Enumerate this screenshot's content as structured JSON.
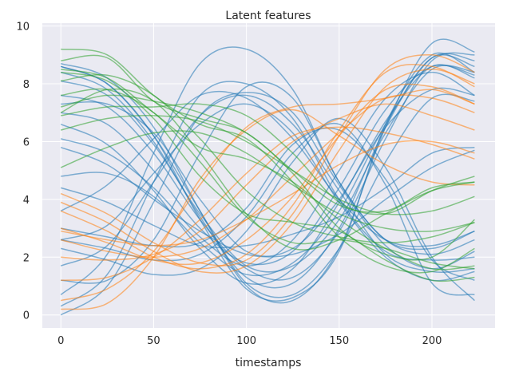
{
  "chart_data": {
    "type": "line",
    "title": "Latent features",
    "xlabel": "timestamps",
    "ylabel": "",
    "xlim": [
      -10,
      234
    ],
    "ylim": [
      -0.45,
      10.1
    ],
    "xticks": [
      0,
      50,
      100,
      150,
      200
    ],
    "yticks": [
      0,
      2,
      4,
      6,
      8,
      10
    ],
    "grid": true,
    "style": "seaborn-darkgrid",
    "colors": {
      "background": "#eaeaf2",
      "grid": "#ffffff",
      "blue": "#1f77b4",
      "orange": "#ff7f0e",
      "green": "#2ca02c"
    },
    "line_alpha": 0.55,
    "x": [
      0,
      25,
      50,
      75,
      100,
      125,
      150,
      175,
      200,
      223
    ],
    "series": [
      {
        "group": "blue",
        "values": [
          0.0,
          1.0,
          3.9,
          6.9,
          7.7,
          7.0,
          4.5,
          2.4,
          1.6,
          2.2
        ]
      },
      {
        "group": "blue",
        "values": [
          0.3,
          1.4,
          4.6,
          7.6,
          8.0,
          6.8,
          4.0,
          2.2,
          1.9,
          2.0
        ]
      },
      {
        "group": "blue",
        "values": [
          0.7,
          2.1,
          5.6,
          8.7,
          9.2,
          7.8,
          4.6,
          2.6,
          2.1,
          2.6
        ]
      },
      {
        "group": "blue",
        "values": [
          1.2,
          1.2,
          2.6,
          5.6,
          7.9,
          7.5,
          4.6,
          2.6,
          2.3,
          2.9
        ]
      },
      {
        "group": "blue",
        "values": [
          1.7,
          2.4,
          4.6,
          6.9,
          7.6,
          6.6,
          4.3,
          2.1,
          1.5,
          1.6
        ]
      },
      {
        "group": "blue",
        "values": [
          2.6,
          3.1,
          4.9,
          6.6,
          7.3,
          6.3,
          3.9,
          2.0,
          1.2,
          1.5
        ]
      },
      {
        "group": "blue",
        "values": [
          3.6,
          4.5,
          6.1,
          7.6,
          7.5,
          6.1,
          4.0,
          2.6,
          2.4,
          2.9
        ]
      },
      {
        "group": "blue",
        "values": [
          4.8,
          4.9,
          4.1,
          2.5,
          1.4,
          1.8,
          3.6,
          6.6,
          8.9,
          8.6
        ]
      },
      {
        "group": "blue",
        "values": [
          6.1,
          5.6,
          4.4,
          2.7,
          1.7,
          2.6,
          5.0,
          7.5,
          8.4,
          7.6
        ]
      },
      {
        "group": "blue",
        "values": [
          6.6,
          5.9,
          4.3,
          2.3,
          1.1,
          1.6,
          3.9,
          6.7,
          8.6,
          8.2
        ]
      },
      {
        "group": "blue",
        "values": [
          7.0,
          6.6,
          5.0,
          3.0,
          1.8,
          2.2,
          4.4,
          7.1,
          8.6,
          8.3
        ]
      },
      {
        "group": "blue",
        "values": [
          7.3,
          7.3,
          6.3,
          4.0,
          2.2,
          2.3,
          4.0,
          6.5,
          7.8,
          7.6
        ]
      },
      {
        "group": "blue",
        "values": [
          7.6,
          7.2,
          5.6,
          3.3,
          1.6,
          1.3,
          2.9,
          6.1,
          8.8,
          9.0
        ]
      },
      {
        "group": "blue",
        "values": [
          8.1,
          7.6,
          5.9,
          3.5,
          1.7,
          1.7,
          3.3,
          6.3,
          8.5,
          8.4
        ]
      },
      {
        "group": "blue",
        "values": [
          8.4,
          7.8,
          6.0,
          3.4,
          1.3,
          1.1,
          3.0,
          6.5,
          8.9,
          8.8
        ]
      },
      {
        "group": "blue",
        "values": [
          8.6,
          8.0,
          6.2,
          3.6,
          1.1,
          0.7,
          2.3,
          5.3,
          7.5,
          7.4
        ]
      },
      {
        "group": "blue",
        "values": [
          8.7,
          8.2,
          6.5,
          3.6,
          1.0,
          0.5,
          2.3,
          6.5,
          9.4,
          9.1
        ]
      },
      {
        "group": "blue",
        "values": [
          8.6,
          8.0,
          6.2,
          3.3,
          0.9,
          0.6,
          2.2,
          6.6,
          9.0,
          8.4
        ]
      },
      {
        "group": "blue",
        "values": [
          2.3,
          1.9,
          1.4,
          1.6,
          2.9,
          5.3,
          6.8,
          5.1,
          2.0,
          0.5
        ]
      },
      {
        "group": "blue",
        "values": [
          2.6,
          2.3,
          1.9,
          2.1,
          3.4,
          5.6,
          6.6,
          4.5,
          1.1,
          0.7
        ]
      },
      {
        "group": "blue",
        "values": [
          3.0,
          2.7,
          2.4,
          2.5,
          3.7,
          5.9,
          6.4,
          4.7,
          1.9,
          1.2
        ]
      },
      {
        "group": "blue",
        "values": [
          4.4,
          3.9,
          3.1,
          2.4,
          2.4,
          2.8,
          3.4,
          4.4,
          5.6,
          5.8
        ]
      },
      {
        "group": "blue",
        "values": [
          5.8,
          5.2,
          4.0,
          2.9,
          2.1,
          2.1,
          2.8,
          4.0,
          5.1,
          5.7
        ]
      },
      {
        "group": "orange",
        "values": [
          4.2,
          3.5,
          2.5,
          1.8,
          1.9,
          3.5,
          6.2,
          8.5,
          9.0,
          8.4
        ]
      },
      {
        "group": "orange",
        "values": [
          3.9,
          3.2,
          2.2,
          1.5,
          1.7,
          3.2,
          5.7,
          7.9,
          8.5,
          8.0
        ]
      },
      {
        "group": "orange",
        "values": [
          3.6,
          2.9,
          2.0,
          1.6,
          2.1,
          3.8,
          6.4,
          8.4,
          8.6,
          7.9
        ]
      },
      {
        "group": "orange",
        "values": [
          3.0,
          2.5,
          1.9,
          1.8,
          2.6,
          4.1,
          6.2,
          7.8,
          7.9,
          7.3
        ]
      },
      {
        "group": "orange",
        "values": [
          2.6,
          2.2,
          2.0,
          2.3,
          3.3,
          4.8,
          6.3,
          7.5,
          7.5,
          7.0
        ]
      },
      {
        "group": "orange",
        "values": [
          2.0,
          1.9,
          2.1,
          2.9,
          4.5,
          6.0,
          6.8,
          7.3,
          6.9,
          6.4
        ]
      },
      {
        "group": "orange",
        "values": [
          1.2,
          1.3,
          2.0,
          3.3,
          4.9,
          6.2,
          6.5,
          6.3,
          5.9,
          5.4
        ]
      },
      {
        "group": "orange",
        "values": [
          0.5,
          0.9,
          2.2,
          4.5,
          6.5,
          7.2,
          7.3,
          7.5,
          7.8,
          7.3
        ]
      },
      {
        "group": "orange",
        "values": [
          0.2,
          0.4,
          2.0,
          4.7,
          6.4,
          7.1,
          6.2,
          5.2,
          4.6,
          4.5
        ]
      },
      {
        "group": "orange",
        "values": [
          2.9,
          2.6,
          2.4,
          2.6,
          3.3,
          4.2,
          5.2,
          5.9,
          6.0,
          5.6
        ]
      },
      {
        "group": "green",
        "values": [
          8.8,
          8.9,
          7.4,
          6.8,
          6.3,
          4.9,
          3.0,
          2.1,
          2.0,
          3.3
        ]
      },
      {
        "group": "green",
        "values": [
          9.2,
          9.0,
          7.6,
          6.6,
          6.1,
          4.6,
          2.7,
          1.7,
          1.5,
          2.3
        ]
      },
      {
        "group": "green",
        "values": [
          8.5,
          8.2,
          7.0,
          5.8,
          5.4,
          4.6,
          3.3,
          2.3,
          1.6,
          1.7
        ]
      },
      {
        "group": "green",
        "values": [
          8.1,
          8.3,
          7.6,
          6.1,
          4.3,
          3.2,
          2.7,
          2.5,
          2.7,
          3.2
        ]
      },
      {
        "group": "green",
        "values": [
          7.2,
          7.6,
          7.4,
          7.0,
          6.3,
          5.0,
          3.8,
          3.6,
          4.4,
          4.6
        ]
      },
      {
        "group": "green",
        "values": [
          6.9,
          7.2,
          7.2,
          7.3,
          6.9,
          5.6,
          3.9,
          3.5,
          4.3,
          4.8
        ]
      },
      {
        "group": "green",
        "values": [
          6.4,
          6.8,
          6.9,
          6.7,
          6.0,
          5.0,
          4.0,
          3.5,
          3.6,
          4.1
        ]
      },
      {
        "group": "green",
        "values": [
          5.1,
          5.8,
          6.3,
          6.3,
          5.6,
          4.5,
          3.5,
          3.0,
          2.9,
          3.2
        ]
      },
      {
        "group": "green",
        "values": [
          7.0,
          7.8,
          7.4,
          5.6,
          3.5,
          2.3,
          2.6,
          3.5,
          4.3,
          4.6
        ]
      },
      {
        "group": "green",
        "values": [
          7.6,
          7.8,
          7.0,
          5.3,
          3.4,
          2.5,
          2.6,
          2.3,
          1.8,
          1.6
        ]
      },
      {
        "group": "green",
        "values": [
          8.4,
          8.1,
          6.8,
          4.8,
          3.5,
          3.2,
          2.9,
          1.9,
          1.2,
          1.3
        ]
      }
    ]
  }
}
